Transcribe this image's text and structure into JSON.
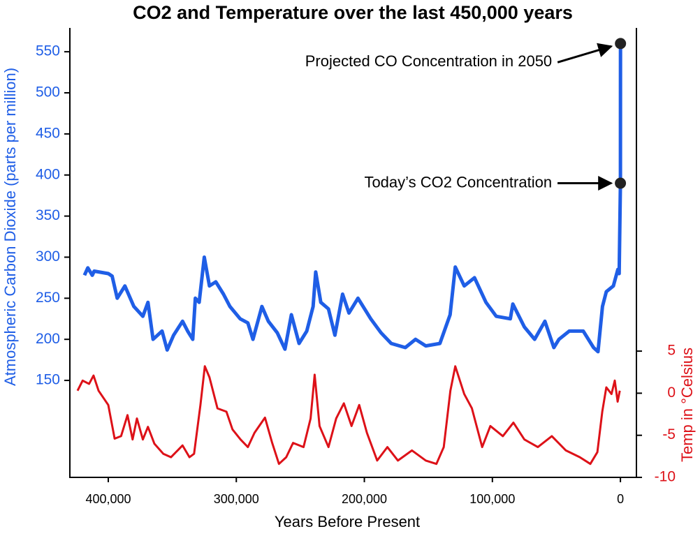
{
  "chart_data": {
    "type": "line",
    "title": "CO2 and Temperature over the last 450,000 years",
    "xlabel": "Years Before Present",
    "ylabel": "Atmospheric Carbon Dioxide (parts per million)",
    "y2label": "Temp in °Celsius",
    "xlim": [
      430000,
      -12500
    ],
    "xticks": [
      {
        "value": 400000,
        "label": "400,000"
      },
      {
        "value": 300000,
        "label": "300,000"
      },
      {
        "value": 200000,
        "label": "200,000"
      },
      {
        "value": 100000,
        "label": "100,000"
      },
      0
    ],
    "ylim": [
      32,
      579
    ],
    "yticks": [
      150,
      200,
      250,
      300,
      350,
      400,
      450,
      500,
      550
    ],
    "y2lim": [
      -10,
      43.4
    ],
    "y2ticks": [
      -10,
      -5,
      0,
      5
    ],
    "series": [
      {
        "name": "CO2",
        "color": "#1f5ee6",
        "axis": "y",
        "x": [
          418600,
          416000,
          412500,
          411000,
          400000,
          397000,
          393000,
          387000,
          380000,
          373000,
          369000,
          365000,
          358000,
          354000,
          349000,
          342000,
          338000,
          334000,
          332000,
          329000,
          325000,
          321000,
          316000,
          310000,
          305000,
          297000,
          291000,
          287000,
          280000,
          275000,
          268000,
          262000,
          257000,
          251000,
          245000,
          240000,
          238000,
          234000,
          228000,
          223000,
          217000,
          212000,
          205000,
          201000,
          195000,
          187000,
          179000,
          168000,
          160000,
          152000,
          141000,
          133000,
          129000,
          122000,
          114000,
          105000,
          97000,
          86000,
          84000,
          75000,
          67000,
          59000,
          52000,
          48000,
          40000,
          29000,
          21000,
          17500,
          14000,
          11000,
          5500,
          2000,
          1000,
          0,
          -50
        ],
        "values": [
          278,
          287,
          278,
          283,
          280,
          277,
          250,
          265,
          240,
          228,
          245,
          200,
          210,
          187,
          205,
          222,
          210,
          200,
          250,
          245,
          300,
          265,
          270,
          255,
          240,
          225,
          220,
          200,
          240,
          222,
          208,
          188,
          230,
          195,
          210,
          240,
          282,
          245,
          237,
          205,
          255,
          232,
          250,
          240,
          225,
          208,
          195,
          190,
          200,
          192,
          195,
          230,
          288,
          265,
          275,
          245,
          228,
          225,
          243,
          215,
          200,
          222,
          190,
          200,
          210,
          210,
          190,
          185,
          240,
          258,
          265,
          285,
          280,
          390,
          560
        ]
      },
      {
        "name": "Temperature",
        "color": "#dd1118",
        "axis": "y2",
        "x": [
          424000,
          420000,
          415000,
          411500,
          407600,
          400000,
          395000,
          390000,
          385000,
          381000,
          377600,
          373000,
          369000,
          364000,
          357000,
          351000,
          342000,
          336600,
          333000,
          328000,
          324600,
          321000,
          314700,
          307700,
          303000,
          296700,
          291000,
          285800,
          277600,
          272000,
          266700,
          261000,
          255700,
          247500,
          242000,
          238800,
          235000,
          228000,
          222000,
          216000,
          210000,
          204000,
          198000,
          190000,
          182000,
          173800,
          162800,
          152000,
          143700,
          138000,
          132800,
          129000,
          122000,
          116000,
          108000,
          101600,
          91800,
          83600,
          75000,
          64500,
          53600,
          42600,
          31700,
          23500,
          18000,
          14200,
          11000,
          7000,
          4400,
          2200,
          500
        ],
        "values": [
          0.3,
          1.5,
          1.1,
          2.1,
          0.3,
          -1.4,
          -5.4,
          -5.1,
          -2.6,
          -5.5,
          -3,
          -5.5,
          -4,
          -6,
          -7.2,
          -7.6,
          -6.2,
          -7.6,
          -7.2,
          -1.4,
          3.2,
          1.9,
          -1.8,
          -2.2,
          -4.3,
          -5.5,
          -6.4,
          -4.7,
          -2.9,
          -5.9,
          -8.4,
          -7.6,
          -5.9,
          -6.4,
          -3,
          2.2,
          -3.9,
          -6.4,
          -3,
          -1.2,
          -3.9,
          -1.4,
          -4.7,
          -8,
          -6.4,
          -8,
          -6.8,
          -8,
          -8.4,
          -6.4,
          0.3,
          3.2,
          -0.1,
          -1.8,
          -6.4,
          -3.9,
          -5.1,
          -3.5,
          -5.5,
          -6.4,
          -5.1,
          -6.8,
          -7.6,
          -8.4,
          -7,
          -2.2,
          0.7,
          -0.1,
          1.5,
          -1,
          0.3
        ]
      }
    ],
    "annotations": [
      {
        "text": "Projected CO Concentration in 2050",
        "x": -50,
        "y": 560
      },
      {
        "text": "Today’s CO2 Concentration",
        "x": 0,
        "y": 390
      }
    ]
  }
}
